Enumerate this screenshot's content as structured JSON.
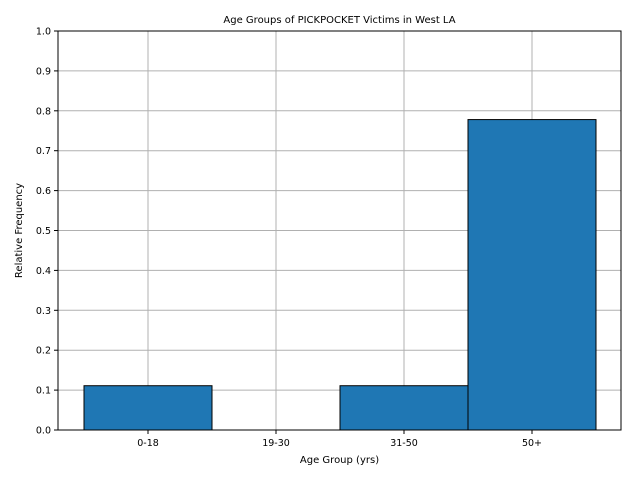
{
  "chart_data": {
    "type": "bar",
    "title": "Age Groups of PICKPOCKET Victims in West LA",
    "xlabel": "Age Group (yrs)",
    "ylabel": "Relative Frequency",
    "categories": [
      "0-18",
      "19-30",
      "31-50",
      "50+"
    ],
    "values": [
      0.111,
      0.0,
      0.111,
      0.778
    ],
    "ylim": [
      0,
      1.0
    ],
    "yticks": [
      "0.0",
      "0.1",
      "0.2",
      "0.3",
      "0.4",
      "0.5",
      "0.6",
      "0.7",
      "0.8",
      "0.9",
      "1.0"
    ],
    "grid": true,
    "bar_color": "#1f77b4",
    "edge_color": "#000000",
    "grid_color": "#b0b0b0"
  }
}
